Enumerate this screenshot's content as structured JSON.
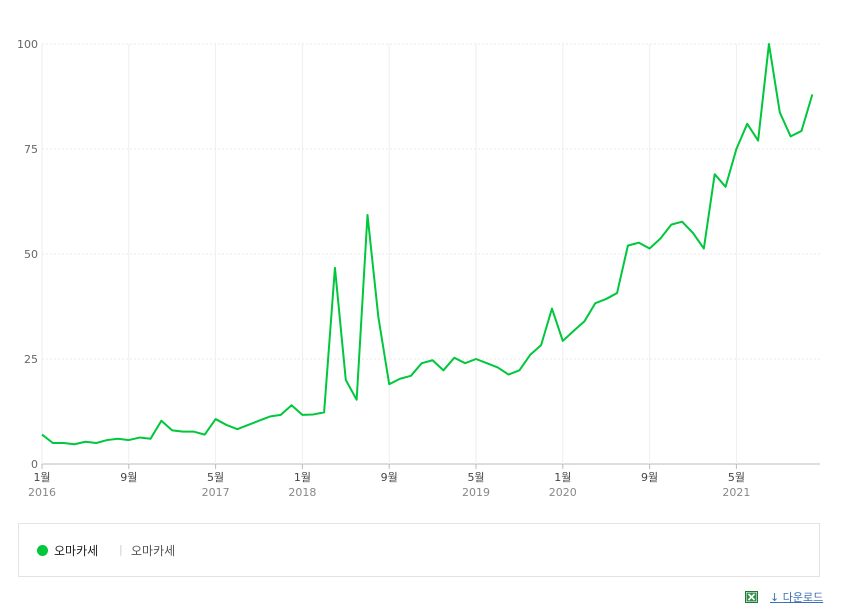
{
  "chart_data": {
    "type": "line",
    "ylim": [
      0,
      100
    ],
    "yticks": [
      "0",
      "25",
      "50",
      "75",
      "100"
    ],
    "grid": true,
    "xticks": [
      {
        "month": "1월",
        "year": "2016",
        "index": 0
      },
      {
        "month": "9월",
        "year": "",
        "index": 8
      },
      {
        "month": "5월",
        "year": "2017",
        "index": 16
      },
      {
        "month": "1월",
        "year": "2018",
        "index": 24
      },
      {
        "month": "9월",
        "year": "",
        "index": 32
      },
      {
        "month": "5월",
        "year": "2019",
        "index": 40
      },
      {
        "month": "1월",
        "year": "2020",
        "index": 48
      },
      {
        "month": "9월",
        "year": "",
        "index": 56
      },
      {
        "month": "5월",
        "year": "2021",
        "index": 64
      }
    ],
    "series": [
      {
        "name": "오마카세",
        "color": "#00c73c",
        "values": [
          7,
          5,
          5,
          4.7,
          5.3,
          5,
          5.7,
          6,
          5.7,
          6.3,
          6,
          10.3,
          8,
          7.7,
          7.7,
          7,
          10.7,
          9.3,
          8.3,
          9.3,
          10.3,
          11.3,
          11.7,
          14,
          11.7,
          11.8,
          12.3,
          46.7,
          20,
          15.3,
          59.3,
          35,
          19,
          20.3,
          21,
          24,
          24.7,
          22.3,
          25.3,
          24,
          25,
          24,
          23,
          21.3,
          22.3,
          26,
          28.3,
          37,
          29.3,
          31.7,
          34,
          38.3,
          39.3,
          40.7,
          52,
          52.7,
          51.3,
          53.7,
          57,
          57.7,
          55,
          51.3,
          69,
          66,
          75,
          81,
          77,
          100,
          83.7,
          78,
          79.3,
          88
        ]
      }
    ]
  },
  "legend": {
    "series_label": "오마카세",
    "separator": "|",
    "term_label": "오마카세"
  },
  "download": {
    "label": "다운로드",
    "icon": "excel-icon",
    "arrow": "↓"
  }
}
